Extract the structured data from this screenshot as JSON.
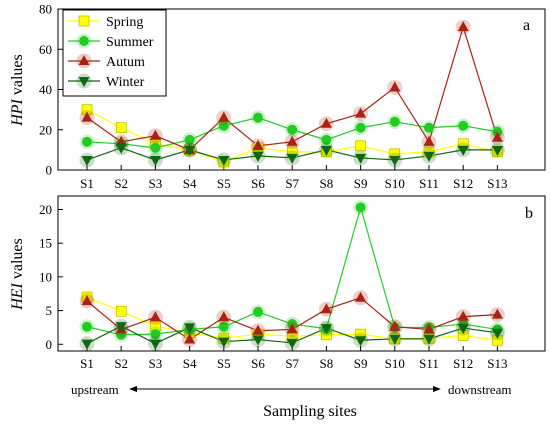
{
  "chart_data": [
    {
      "type": "line",
      "panel_label": "a",
      "ylabel_italic": "HPI",
      "ylabel_rest": " values",
      "ylim": [
        0,
        80
      ],
      "yticks": [
        0,
        20,
        40,
        60,
        80
      ],
      "categories": [
        "S1",
        "S2",
        "S3",
        "S4",
        "S5",
        "S6",
        "S7",
        "S8",
        "S9",
        "S10",
        "S11",
        "S12",
        "S13"
      ],
      "series": [
        {
          "name": "Spring",
          "color": "#ffff00",
          "marker": "square",
          "values": [
            30,
            21,
            13,
            10,
            4,
            11,
            9,
            9,
            12,
            8,
            9,
            13,
            9
          ]
        },
        {
          "name": "Summer",
          "color": "#22cc22",
          "marker": "circle",
          "values": [
            14,
            13,
            11,
            15,
            22,
            26,
            20,
            15,
            21,
            24,
            21,
            22,
            19
          ]
        },
        {
          "name": "Autum",
          "color": "#aa2211",
          "marker": "triangle-up",
          "values": [
            26,
            14,
            17,
            10,
            26,
            12,
            14,
            23,
            28,
            41,
            14,
            71,
            16
          ]
        },
        {
          "name": "Winter",
          "color": "#116611",
          "marker": "triangle-down",
          "values": [
            5,
            11,
            5,
            10,
            5,
            7,
            6,
            10,
            6,
            5,
            7,
            10,
            10
          ]
        }
      ],
      "legend_position": "top-left"
    },
    {
      "type": "line",
      "panel_label": "b",
      "ylabel_italic": "HEI",
      "ylabel_rest": " values",
      "ylim": [
        -1,
        22
      ],
      "yticks": [
        0,
        5,
        10,
        15,
        20
      ],
      "categories": [
        "S1",
        "S2",
        "S3",
        "S4",
        "S5",
        "S6",
        "S7",
        "S8",
        "S9",
        "S10",
        "S11",
        "S12",
        "S13"
      ],
      "series": [
        {
          "name": "Spring",
          "color": "#ffff00",
          "marker": "square",
          "values": [
            7.0,
            4.9,
            2.7,
            1.7,
            0.9,
            1.5,
            1.2,
            1.4,
            1.5,
            0.8,
            0.9,
            1.3,
            0.6
          ]
        },
        {
          "name": "Summer",
          "color": "#22cc22",
          "marker": "circle",
          "values": [
            2.6,
            1.4,
            1.5,
            2.2,
            2.6,
            4.8,
            3.0,
            2.3,
            20.3,
            2.5,
            2.5,
            3.0,
            2.2
          ]
        },
        {
          "name": "Autum",
          "color": "#aa2211",
          "marker": "triangle-up",
          "values": [
            6.4,
            2.2,
            4.0,
            0.7,
            4.0,
            2.0,
            2.2,
            5.2,
            6.9,
            2.6,
            2.2,
            4.1,
            4.4
          ]
        },
        {
          "name": "Winter",
          "color": "#116611",
          "marker": "triangle-down",
          "values": [
            0.1,
            2.7,
            0.1,
            2.5,
            0.4,
            0.7,
            0.2,
            2.4,
            0.6,
            0.8,
            0.8,
            2.4,
            1.7
          ]
        }
      ]
    }
  ],
  "xlabel": "Sampling sites",
  "upstream_label": "upstream",
  "downstream_label": "downstream"
}
